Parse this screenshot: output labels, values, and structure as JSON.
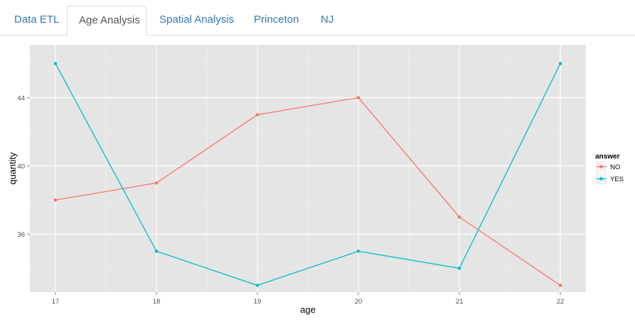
{
  "tabs": [
    {
      "label": "Data ETL",
      "active": false
    },
    {
      "label": "Age Analysis",
      "active": true
    },
    {
      "label": "Spatial Analysis",
      "active": false
    },
    {
      "label": "Princeton",
      "active": false
    },
    {
      "label": "NJ",
      "active": false
    }
  ],
  "chart_data": {
    "type": "line",
    "title": "",
    "xlabel": "age",
    "ylabel": "quantity",
    "x": [
      17,
      18,
      19,
      20,
      21,
      22
    ],
    "xticks": [
      "17",
      "18",
      "19",
      "20",
      "21",
      "22"
    ],
    "yticks": [
      "36",
      "40",
      "44"
    ],
    "ylim": [
      32.6,
      47.1
    ],
    "grid": true,
    "legend": {
      "title": "answer",
      "position": "right"
    },
    "series": [
      {
        "name": "NO",
        "color": "#f8766d",
        "values": [
          38,
          39,
          43,
          44,
          37,
          33
        ]
      },
      {
        "name": "YES",
        "color": "#00bfc4",
        "values": [
          46,
          35,
          33,
          35,
          34,
          46
        ]
      }
    ]
  }
}
